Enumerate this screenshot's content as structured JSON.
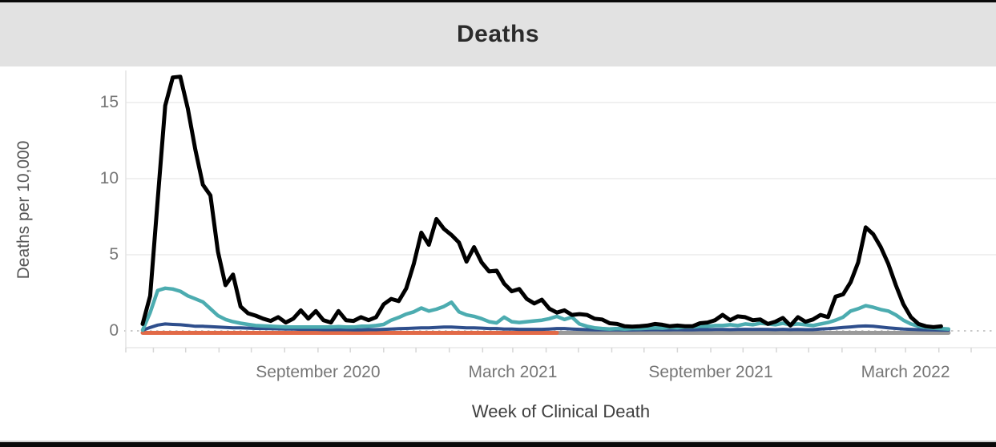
{
  "header": {
    "title": "Deaths"
  },
  "chart_data": {
    "type": "line",
    "title": "Deaths",
    "xlabel": "Week of Clinical Death",
    "ylabel": "Deaths per 10,000",
    "x_unit": "week",
    "y_ticks": [
      0,
      5,
      10,
      15
    ],
    "ylim": [
      0,
      17
    ],
    "grid": "horizontal, light gray; zero line dotted extending past data on both ends",
    "legend": "none",
    "x_ticks": [
      {
        "label": "September 2020"
      },
      {
        "label": "March 2021"
      },
      {
        "label": "September 2021"
      },
      {
        "label": "March 2022"
      }
    ],
    "series": [
      {
        "name": "series-gray",
        "color": "#9a9a9a",
        "width": 5,
        "start": 55,
        "values": [
          0,
          0,
          0,
          0,
          0,
          0,
          0,
          0,
          0,
          0,
          0,
          0,
          0,
          0,
          0,
          0,
          0,
          0,
          0,
          0,
          0,
          0,
          0,
          0,
          0,
          0,
          0,
          0,
          0,
          0,
          0,
          0,
          0,
          0,
          0,
          0,
          0,
          0,
          0,
          0,
          0,
          0,
          0,
          0,
          0,
          0,
          0,
          0,
          0,
          0,
          0,
          0,
          0
        ]
      },
      {
        "name": "series-orange",
        "color": "#e26a47",
        "width": 5,
        "start": 0,
        "values": [
          0,
          0,
          0,
          0,
          0,
          0,
          0,
          0,
          0,
          0,
          0,
          0,
          0,
          0,
          0,
          0,
          0,
          0,
          0,
          0,
          0,
          0,
          0,
          0,
          0,
          0,
          0,
          0,
          0,
          0,
          0,
          0,
          0,
          0,
          0,
          0,
          0,
          0,
          0,
          0,
          0,
          0,
          0,
          0,
          0,
          0,
          0,
          0,
          0,
          0,
          0,
          0,
          0,
          0,
          0,
          0
        ]
      },
      {
        "name": "series-navy",
        "color": "#2e4e8c",
        "width": 4,
        "start": 0,
        "values": [
          0.04,
          0.22,
          0.38,
          0.45,
          0.42,
          0.4,
          0.36,
          0.3,
          0.3,
          0.28,
          0.25,
          0.22,
          0.2,
          0.2,
          0.18,
          0.16,
          0.15,
          0.14,
          0.13,
          0.12,
          0.12,
          0.1,
          0.1,
          0.1,
          0.08,
          0.08,
          0.08,
          0.08,
          0.07,
          0.07,
          0.08,
          0.08,
          0.1,
          0.12,
          0.14,
          0.16,
          0.18,
          0.2,
          0.2,
          0.22,
          0.25,
          0.25,
          0.22,
          0.2,
          0.2,
          0.18,
          0.15,
          0.15,
          0.12,
          0.12,
          0.1,
          0.1,
          0.1,
          0.1,
          0.12,
          0.15,
          0.15,
          0.12,
          0.1,
          0.08,
          0.07,
          0.07,
          0.07,
          0.07,
          0.06,
          0.06,
          0.07,
          0.07,
          0.08,
          0.07,
          0.07,
          0.08,
          0.07,
          0.07,
          0.08,
          0.08,
          0.09,
          0.09,
          0.08,
          0.09,
          0.1,
          0.09,
          0.1,
          0.09,
          0.08,
          0.1,
          0.08,
          0.09,
          0.08,
          0.08,
          0.12,
          0.14,
          0.18,
          0.22,
          0.26,
          0.3,
          0.32,
          0.3,
          0.25,
          0.2,
          0.16,
          0.12,
          0.1,
          0.08,
          0.07,
          0.06,
          0.05,
          0.05
        ]
      },
      {
        "name": "series-teal",
        "color": "#4cacb0",
        "width": 4.5,
        "start": 0,
        "values": [
          0.05,
          1.2,
          2.65,
          2.8,
          2.75,
          2.6,
          2.3,
          2.1,
          1.9,
          1.45,
          1.0,
          0.75,
          0.6,
          0.5,
          0.42,
          0.35,
          0.32,
          0.3,
          0.28,
          0.25,
          0.25,
          0.25,
          0.25,
          0.25,
          0.25,
          0.25,
          0.28,
          0.25,
          0.25,
          0.3,
          0.3,
          0.35,
          0.42,
          0.7,
          0.88,
          1.1,
          1.25,
          1.5,
          1.3,
          1.42,
          1.6,
          1.88,
          1.25,
          1.05,
          0.95,
          0.8,
          0.6,
          0.52,
          0.9,
          0.6,
          0.55,
          0.6,
          0.65,
          0.7,
          0.8,
          0.95,
          0.75,
          0.9,
          0.45,
          0.3,
          0.2,
          0.15,
          0.12,
          0.15,
          0.12,
          0.15,
          0.15,
          0.18,
          0.2,
          0.18,
          0.22,
          0.2,
          0.25,
          0.25,
          0.3,
          0.3,
          0.35,
          0.35,
          0.4,
          0.35,
          0.45,
          0.4,
          0.5,
          0.45,
          0.4,
          0.5,
          0.4,
          0.45,
          0.4,
          0.35,
          0.45,
          0.55,
          0.7,
          0.9,
          1.3,
          1.45,
          1.65,
          1.55,
          1.4,
          1.3,
          1.05,
          0.7,
          0.45,
          0.3,
          0.22,
          0.18,
          0.15,
          0.12
        ]
      },
      {
        "name": "series-black",
        "color": "#000000",
        "width": 5,
        "start": 0,
        "values": [
          0.45,
          2.3,
          8.6,
          14.8,
          16.65,
          16.7,
          14.6,
          11.9,
          9.6,
          8.9,
          5.2,
          3.0,
          3.7,
          1.6,
          1.15,
          1.0,
          0.8,
          0.65,
          0.9,
          0.55,
          0.8,
          1.35,
          0.8,
          1.3,
          0.7,
          0.55,
          1.3,
          0.7,
          0.65,
          0.9,
          0.7,
          0.9,
          1.74,
          2.1,
          1.95,
          2.79,
          4.4,
          6.45,
          5.65,
          7.35,
          6.7,
          6.3,
          5.8,
          4.55,
          5.5,
          4.5,
          3.9,
          3.95,
          3.1,
          2.6,
          2.75,
          2.1,
          1.8,
          2.05,
          1.45,
          1.2,
          1.35,
          1.05,
          1.1,
          1.05,
          0.8,
          0.75,
          0.5,
          0.45,
          0.3,
          0.28,
          0.3,
          0.35,
          0.45,
          0.4,
          0.3,
          0.35,
          0.3,
          0.3,
          0.5,
          0.55,
          0.7,
          1.05,
          0.7,
          0.95,
          0.9,
          0.7,
          0.75,
          0.45,
          0.6,
          0.85,
          0.35,
          0.9,
          0.6,
          0.75,
          1.05,
          0.9,
          2.25,
          2.4,
          3.2,
          4.5,
          6.8,
          6.35,
          5.5,
          4.4,
          3.0,
          1.75,
          0.9,
          0.45,
          0.3,
          0.25,
          0.3
        ]
      }
    ]
  }
}
